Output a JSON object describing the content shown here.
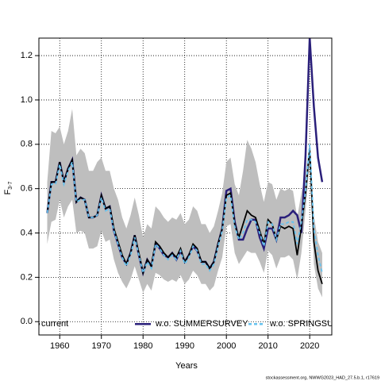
{
  "chart_data": {
    "type": "line",
    "xlabel": "Years",
    "ylabel": "F",
    "ylabel_sub": "3-7",
    "footnote": "stockassessment.org, NWWG2023_HAD_27.5.b.1, r17619",
    "x": [
      1957,
      1958,
      1959,
      1960,
      1961,
      1962,
      1963,
      1964,
      1965,
      1966,
      1967,
      1968,
      1969,
      1970,
      1971,
      1972,
      1973,
      1974,
      1975,
      1976,
      1977,
      1978,
      1979,
      1980,
      1981,
      1982,
      1983,
      1984,
      1985,
      1986,
      1987,
      1988,
      1989,
      1990,
      1991,
      1992,
      1993,
      1994,
      1995,
      1996,
      1997,
      1998,
      1999,
      2000,
      2001,
      2002,
      2003,
      2004,
      2005,
      2006,
      2007,
      2008,
      2009,
      2010,
      2011,
      2012,
      2013,
      2014,
      2015,
      2016,
      2017,
      2018,
      2019,
      2020,
      2021,
      2022,
      2023
    ],
    "xlim": [
      1955,
      2025.3
    ],
    "xticks": [
      1960,
      1970,
      1980,
      1990,
      2000,
      2010,
      2020
    ],
    "ylim": [
      -0.06,
      1.279
    ],
    "yticks": [
      {
        "value": 0,
        "label": "0.0"
      },
      {
        "value": 0.2,
        "label": "0.2"
      },
      {
        "value": 0.4,
        "label": "0.4"
      },
      {
        "value": 0.6,
        "label": "0.6"
      },
      {
        "value": 0.8,
        "label": "0.8"
      },
      {
        "value": 1,
        "label": "1.0"
      },
      {
        "value": 1.2,
        "label": "1.2"
      }
    ],
    "grid": true,
    "band": {
      "color": "#bebebe",
      "upper": [
        0.63,
        0.86,
        0.85,
        0.88,
        0.8,
        0.86,
        0.96,
        0.75,
        0.78,
        0.76,
        0.68,
        0.68,
        0.72,
        0.74,
        0.68,
        0.68,
        0.6,
        0.55,
        0.47,
        0.42,
        0.48,
        0.56,
        0.48,
        0.38,
        0.44,
        0.42,
        0.52,
        0.5,
        0.47,
        0.45,
        0.47,
        0.46,
        0.49,
        0.44,
        0.46,
        0.52,
        0.5,
        0.44,
        0.44,
        0.4,
        0.43,
        0.5,
        0.58,
        0.72,
        0.74,
        0.62,
        0.57,
        0.68,
        0.82,
        0.78,
        0.72,
        0.62,
        0.54,
        0.63,
        0.62,
        0.55,
        0.6,
        0.59,
        0.6,
        0.59,
        0.47,
        0.58,
        0.66,
        0.82,
        0.48,
        0.36,
        0.31
      ],
      "lower": [
        0.35,
        0.45,
        0.46,
        0.55,
        0.47,
        0.52,
        0.55,
        0.4,
        0.41,
        0.4,
        0.33,
        0.33,
        0.34,
        0.41,
        0.36,
        0.37,
        0.28,
        0.22,
        0.18,
        0.15,
        0.19,
        0.25,
        0.19,
        0.13,
        0.17,
        0.14,
        0.22,
        0.21,
        0.19,
        0.18,
        0.19,
        0.18,
        0.21,
        0.17,
        0.19,
        0.23,
        0.21,
        0.17,
        0.17,
        0.14,
        0.16,
        0.23,
        0.29,
        0.43,
        0.44,
        0.31,
        0.26,
        0.29,
        0.32,
        0.31,
        0.31,
        0.27,
        0.22,
        0.32,
        0.3,
        0.24,
        0.29,
        0.29,
        0.3,
        0.28,
        0.19,
        0.31,
        0.5,
        0.73,
        0.26,
        0.15,
        0.11
      ]
    },
    "series": [
      {
        "name": "current",
        "color": "#000000",
        "values": [
          0.49,
          0.63,
          0.63,
          0.72,
          0.63,
          0.69,
          0.73,
          0.54,
          0.56,
          0.55,
          0.47,
          0.47,
          0.48,
          0.57,
          0.51,
          0.52,
          0.42,
          0.36,
          0.3,
          0.26,
          0.31,
          0.39,
          0.31,
          0.22,
          0.28,
          0.25,
          0.36,
          0.34,
          0.31,
          0.29,
          0.31,
          0.29,
          0.33,
          0.27,
          0.3,
          0.35,
          0.33,
          0.27,
          0.27,
          0.24,
          0.27,
          0.35,
          0.42,
          0.57,
          0.58,
          0.44,
          0.38,
          0.44,
          0.5,
          0.48,
          0.47,
          0.41,
          0.35,
          0.46,
          0.44,
          0.37,
          0.43,
          0.42,
          0.43,
          0.42,
          0.3,
          0.43,
          0.58,
          0.78,
          0.36,
          0.23,
          0.17
        ]
      },
      {
        "name": "w.o. SUMMERSURVEY",
        "color": "#2a1f7a",
        "values": [
          0.49,
          0.63,
          0.63,
          0.72,
          0.63,
          0.69,
          0.73,
          0.54,
          0.56,
          0.55,
          0.47,
          0.47,
          0.48,
          0.57,
          0.51,
          0.52,
          0.41,
          0.35,
          0.29,
          0.26,
          0.31,
          0.39,
          0.3,
          0.22,
          0.28,
          0.25,
          0.35,
          0.33,
          0.3,
          0.29,
          0.31,
          0.28,
          0.32,
          0.27,
          0.3,
          0.34,
          0.32,
          0.27,
          0.27,
          0.24,
          0.27,
          0.35,
          0.42,
          0.59,
          0.6,
          0.45,
          0.37,
          0.37,
          0.42,
          0.46,
          0.46,
          0.38,
          0.33,
          0.42,
          0.42,
          0.37,
          0.47,
          0.47,
          0.48,
          0.5,
          0.48,
          0.4,
          0.75,
          1.28,
          0.97,
          0.74,
          0.63
        ]
      },
      {
        "name": "w.o. SPRINGSURVEY",
        "color": "#66c2ee",
        "dashed": true,
        "values": [
          0.49,
          0.62,
          0.62,
          0.71,
          0.62,
          0.68,
          0.72,
          0.54,
          0.55,
          0.55,
          0.47,
          0.47,
          0.48,
          0.56,
          0.5,
          0.51,
          0.41,
          0.35,
          0.29,
          0.25,
          0.3,
          0.38,
          0.3,
          0.22,
          0.27,
          0.24,
          0.35,
          0.33,
          0.3,
          0.28,
          0.3,
          0.28,
          0.32,
          0.26,
          0.29,
          0.34,
          0.32,
          0.26,
          0.26,
          0.23,
          0.26,
          0.34,
          0.41,
          0.56,
          0.57,
          0.43,
          0.37,
          0.4,
          0.46,
          0.46,
          0.45,
          0.4,
          0.34,
          0.45,
          0.44,
          0.37,
          0.44,
          0.44,
          0.45,
          0.45,
          0.35,
          0.45,
          0.59,
          0.8,
          0.42,
          0.3,
          0.22
        ]
      }
    ]
  }
}
